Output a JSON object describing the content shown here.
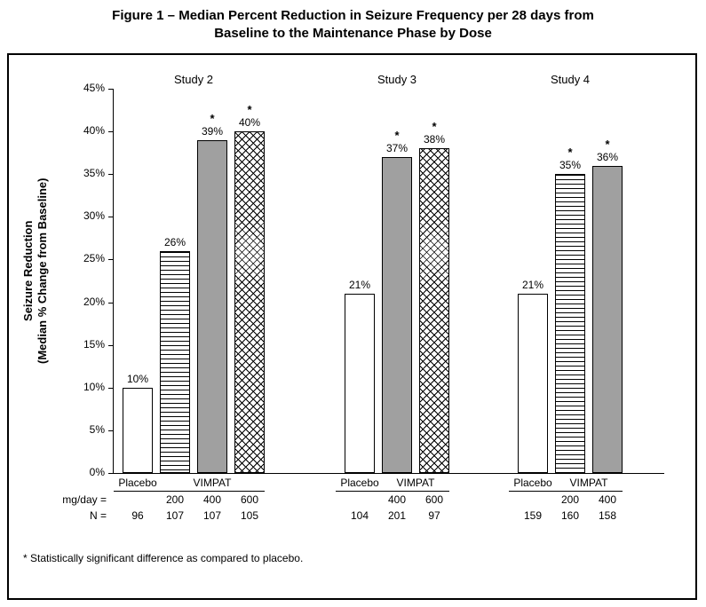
{
  "title": {
    "line1": "Figure 1 – Median Percent Reduction in Seizure Frequency per 28 days from",
    "line2": "Baseline to the Maintenance Phase by Dose"
  },
  "footnote": "* Statistically significant difference as compared to placebo.",
  "y_axis": {
    "label_line1": "Seizure Reduction",
    "label_line2": "(Median % Change from Baseline)",
    "ticks": [
      "0%",
      "5%",
      "10%",
      "15%",
      "20%",
      "25%",
      "30%",
      "35%",
      "40%",
      "45%"
    ],
    "min": 0,
    "max": 45,
    "step": 5
  },
  "x_axis": {
    "placebo_label": "Placebo",
    "vimpat_label": "VIMPAT",
    "row_labels": {
      "mgday": "mg/day =",
      "n": "N ="
    }
  },
  "chart_data": {
    "type": "bar",
    "title": "Figure 1 – Median Percent Reduction in Seizure Frequency per 28 days from Baseline to the Maintenance Phase by Dose",
    "ylabel": "Seizure Reduction (Median % Change from Baseline)",
    "ylim": [
      0,
      45
    ],
    "y_tick_step": 5,
    "grid": false,
    "legend": "none",
    "groups": [
      {
        "study": "Study 2",
        "bars": [
          {
            "arm": "Placebo",
            "dose_mg_day": null,
            "n": 96,
            "value": 10,
            "label": "10%",
            "significant": false,
            "pattern": "plain"
          },
          {
            "arm": "VIMPAT",
            "dose_mg_day": 200,
            "n": 107,
            "value": 26,
            "label": "26%",
            "significant": false,
            "pattern": "hlines"
          },
          {
            "arm": "VIMPAT",
            "dose_mg_day": 400,
            "n": 107,
            "value": 39,
            "label": "39%",
            "significant": true,
            "pattern": "solid"
          },
          {
            "arm": "VIMPAT",
            "dose_mg_day": 600,
            "n": 105,
            "value": 40,
            "label": "40%",
            "significant": true,
            "pattern": "crosshatch"
          }
        ]
      },
      {
        "study": "Study 3",
        "bars": [
          {
            "arm": "Placebo",
            "dose_mg_day": null,
            "n": 104,
            "value": 21,
            "label": "21%",
            "significant": false,
            "pattern": "plain"
          },
          {
            "arm": "VIMPAT",
            "dose_mg_day": 400,
            "n": 201,
            "value": 37,
            "label": "37%",
            "significant": true,
            "pattern": "solid"
          },
          {
            "arm": "VIMPAT",
            "dose_mg_day": 600,
            "n": 97,
            "value": 38,
            "label": "38%",
            "significant": true,
            "pattern": "crosshatch"
          }
        ]
      },
      {
        "study": "Study 4",
        "bars": [
          {
            "arm": "Placebo",
            "dose_mg_day": null,
            "n": 159,
            "value": 21,
            "label": "21%",
            "significant": false,
            "pattern": "plain"
          },
          {
            "arm": "VIMPAT",
            "dose_mg_day": 200,
            "n": 160,
            "value": 35,
            "label": "35%",
            "significant": true,
            "pattern": "hlines"
          },
          {
            "arm": "VIMPAT",
            "dose_mg_day": 400,
            "n": 158,
            "value": 36,
            "label": "36%",
            "significant": true,
            "pattern": "solid"
          }
        ]
      }
    ],
    "colors": {
      "solid_bar": "#a0a0a0",
      "axis": "#000000",
      "text": "#000000",
      "background": "#ffffff"
    }
  }
}
